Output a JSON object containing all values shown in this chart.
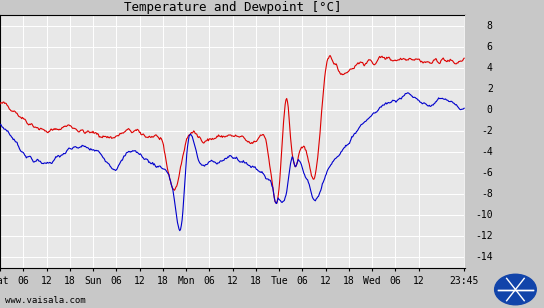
{
  "title": "Temperature and Dewpoint [°C]",
  "ylabel_right_ticks": [
    8,
    6,
    4,
    2,
    0,
    -2,
    -4,
    -6,
    -8,
    -10,
    -12,
    -14
  ],
  "ylim": [
    -15,
    9
  ],
  "xlabel_ticks": [
    "Sat",
    "06",
    "12",
    "18",
    "Sun",
    "06",
    "12",
    "18",
    "Mon",
    "06",
    "12",
    "18",
    "Tue",
    "06",
    "12",
    "18",
    "Wed",
    "06",
    "12",
    "23:45"
  ],
  "x_tick_positions": [
    0,
    6,
    12,
    18,
    24,
    30,
    36,
    42,
    48,
    54,
    60,
    66,
    72,
    78,
    84,
    90,
    96,
    102,
    108,
    119.75
  ],
  "xlim": [
    0,
    120
  ],
  "watermark": "www.vaisala.com",
  "outer_bg_color": "#c8c8c8",
  "plot_bg_color": "#e8e8e8",
  "right_panel_color": "#c8c8c8",
  "grid_color": "#ffffff",
  "temp_color": "#dd0000",
  "dewp_color": "#0000cc",
  "line_width": 0.8,
  "temp_waypoints": [
    [
      0,
      0.5
    ],
    [
      3,
      0.2
    ],
    [
      6,
      -0.8
    ],
    [
      9,
      -1.5
    ],
    [
      12,
      -2.0
    ],
    [
      15,
      -1.8
    ],
    [
      18,
      -1.5
    ],
    [
      21,
      -2.0
    ],
    [
      24,
      -2.2
    ],
    [
      27,
      -2.5
    ],
    [
      30,
      -2.5
    ],
    [
      33,
      -2.0
    ],
    [
      36,
      -2.2
    ],
    [
      39,
      -2.5
    ],
    [
      42,
      -3.5
    ],
    [
      45,
      -7.5
    ],
    [
      48,
      -3.0
    ],
    [
      51,
      -2.5
    ],
    [
      54,
      -2.8
    ],
    [
      57,
      -2.5
    ],
    [
      60,
      -2.5
    ],
    [
      63,
      -2.8
    ],
    [
      66,
      -3.0
    ],
    [
      69,
      -3.5
    ],
    [
      72,
      -7.5
    ],
    [
      74,
      1.0
    ],
    [
      75,
      -3.0
    ],
    [
      78,
      -3.5
    ],
    [
      80,
      -5.5
    ],
    [
      81,
      -6.5
    ],
    [
      84,
      3.5
    ],
    [
      87,
      4.0
    ],
    [
      90,
      3.8
    ],
    [
      93,
      4.5
    ],
    [
      96,
      4.5
    ],
    [
      99,
      5.0
    ],
    [
      102,
      4.8
    ],
    [
      105,
      5.0
    ],
    [
      108,
      4.8
    ],
    [
      111,
      4.5
    ],
    [
      114,
      4.8
    ],
    [
      117,
      4.5
    ],
    [
      119.75,
      5.0
    ]
  ],
  "dewp_waypoints": [
    [
      0,
      -1.5
    ],
    [
      3,
      -2.5
    ],
    [
      6,
      -4.0
    ],
    [
      9,
      -4.8
    ],
    [
      12,
      -5.0
    ],
    [
      15,
      -4.5
    ],
    [
      18,
      -3.8
    ],
    [
      21,
      -3.5
    ],
    [
      24,
      -3.8
    ],
    [
      27,
      -4.5
    ],
    [
      30,
      -5.5
    ],
    [
      33,
      -4.0
    ],
    [
      36,
      -4.2
    ],
    [
      39,
      -5.0
    ],
    [
      42,
      -5.5
    ],
    [
      45,
      -8.5
    ],
    [
      47,
      -10.5
    ],
    [
      48,
      -5.0
    ],
    [
      51,
      -4.5
    ],
    [
      54,
      -5.0
    ],
    [
      57,
      -4.8
    ],
    [
      60,
      -4.5
    ],
    [
      63,
      -5.0
    ],
    [
      66,
      -5.5
    ],
    [
      69,
      -6.5
    ],
    [
      72,
      -8.5
    ],
    [
      74,
      -7.5
    ],
    [
      75,
      -5.0
    ],
    [
      78,
      -5.5
    ],
    [
      80,
      -7.5
    ],
    [
      81,
      -8.5
    ],
    [
      84,
      -6.0
    ],
    [
      87,
      -4.5
    ],
    [
      90,
      -3.0
    ],
    [
      93,
      -1.5
    ],
    [
      96,
      -0.5
    ],
    [
      99,
      0.5
    ],
    [
      102,
      1.0
    ],
    [
      105,
      1.5
    ],
    [
      108,
      1.0
    ],
    [
      111,
      0.5
    ],
    [
      114,
      1.0
    ],
    [
      117,
      0.5
    ],
    [
      119.75,
      0.0
    ]
  ]
}
